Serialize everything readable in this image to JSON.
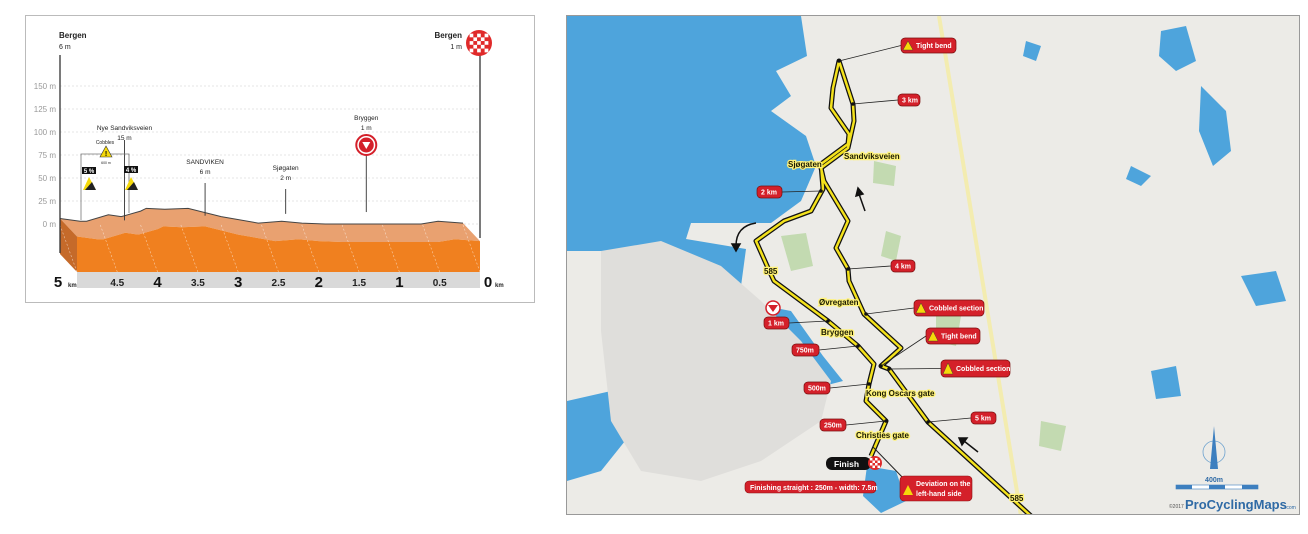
{
  "profile": {
    "start": {
      "name": "Bergen",
      "elevation": "6 m"
    },
    "finish": {
      "name": "Bergen",
      "elevation": "1 m"
    },
    "y_ticks": [
      "150 m",
      "125 m",
      "100 m",
      "75 m",
      "50 m",
      "25 m",
      "0 m"
    ],
    "x_ticks": [
      "5",
      "4.5",
      "4",
      "3.5",
      "3",
      "2.5",
      "2",
      "1.5",
      "1",
      "0.5",
      "0"
    ],
    "x_unit": "km",
    "landmarks": [
      {
        "name": "Nye Sandviksveien",
        "elevation": "15 m",
        "km": 4.2
      },
      {
        "name": "SANDVIKEN",
        "elevation": "6 m",
        "km": 3.2
      },
      {
        "name": "Sjøgaten",
        "elevation": "2 m",
        "km": 2.2
      },
      {
        "name": "Bryggen",
        "elevation": "1 m",
        "km": 1.2
      }
    ],
    "cobbles": {
      "label": "Cobbles",
      "length": "600 m",
      "gradient_start": "5 %",
      "gradient_end": "4 %"
    },
    "chart_data": {
      "type": "area",
      "xlabel": "km",
      "ylabel": "",
      "xlim": [
        5,
        0
      ],
      "ylim": [
        0,
        150
      ],
      "grid": true,
      "km_to_finish": [
        5,
        4.75,
        4.67,
        4.4,
        4.24,
        4.0,
        3.93,
        3.7,
        3.41,
        3.0,
        2.54,
        2.25,
        2.0,
        1.71,
        0.52,
        0.31,
        0
      ],
      "elevation_m": [
        6,
        3,
        3,
        10,
        8,
        14,
        17,
        16,
        17,
        8,
        1,
        3,
        1,
        0,
        0,
        3,
        1
      ]
    },
    "colors": {
      "front": "#f0801f",
      "top": "#e9a170",
      "side": "#c56a2a",
      "axis_band": "#d9d9d9"
    }
  },
  "map": {
    "streets": [
      "Sjøgaten",
      "Sandviksveien",
      "Øvregaten",
      "Bryggen",
      "Kong Oscars gate",
      "Christies gate"
    ],
    "road_numbers": [
      "585",
      "585"
    ],
    "callouts": [
      {
        "label": "Tight bend",
        "warning": true
      },
      {
        "label": "3 km",
        "warning": false
      },
      {
        "label": "2 km",
        "warning": false
      },
      {
        "label": "4 km",
        "warning": false
      },
      {
        "label": "Cobbled section",
        "warning": true
      },
      {
        "label": "1 km",
        "warning": false
      },
      {
        "label": "Tight bend",
        "warning": true
      },
      {
        "label": "750m",
        "warning": false
      },
      {
        "label": "Cobbled section",
        "warning": true
      },
      {
        "label": "500m",
        "warning": false
      },
      {
        "label": "5 km",
        "warning": false
      },
      {
        "label": "250m",
        "warning": false
      }
    ],
    "finish_label": "Finish",
    "finishing_straight": "Finishing straight : 250m - width: 7.5m",
    "deviation": [
      "Deviation on the",
      "left-hand side"
    ],
    "scale": "400m",
    "copyright": "©2017",
    "brand": "ProCyclingMaps",
    "brand_suffix": ".com",
    "colors": {
      "water": "#4ea4dc",
      "land": "#ecebe7",
      "route": "#f4e21c",
      "callout": "#d4202a"
    }
  }
}
